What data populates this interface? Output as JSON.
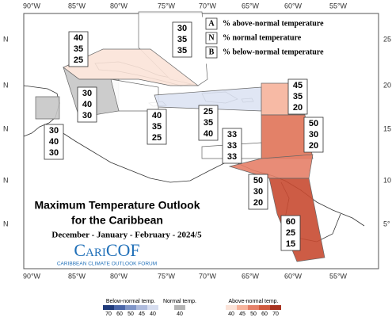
{
  "map": {
    "lon_labels": [
      "90°W",
      "85°W",
      "80°W",
      "75°W",
      "70°W",
      "65°W",
      "60°W",
      "55°W"
    ],
    "lat_labels_left": [
      "N",
      "N",
      "N",
      "N",
      "N"
    ],
    "lat_labels_right": [
      "25",
      "20",
      "15",
      "10",
      "5°"
    ],
    "legend": [
      {
        "letter": "A",
        "text": "% above-normal temperature"
      },
      {
        "letter": "N",
        "text": "% normal temperature"
      },
      {
        "letter": "B",
        "text": "% below-normal temperature"
      }
    ],
    "regions": [
      {
        "color": "#ffffff",
        "values": [
          30,
          35,
          35
        ]
      },
      {
        "color": "#fbe3d8",
        "values": [
          40,
          35,
          25
        ]
      },
      {
        "color": "#c6c6c6",
        "values": [
          30,
          40,
          30
        ]
      },
      {
        "color": "#c6c6c6",
        "values": [
          30,
          40,
          30
        ]
      },
      {
        "color": "#ffffff",
        "values": [
          40,
          35,
          25
        ]
      },
      {
        "color": "#dde3f3",
        "values": [
          25,
          35,
          40
        ]
      },
      {
        "color": "#f6b39b",
        "values": [
          45,
          35,
          20
        ]
      },
      {
        "color": "#e07358",
        "values": [
          50,
          30,
          20
        ]
      },
      {
        "color": "#ffffff",
        "values": [
          33,
          33,
          33
        ]
      },
      {
        "color": "#e58068",
        "values": [
          50,
          30,
          20
        ]
      },
      {
        "color": "#c84a31",
        "values": [
          60,
          25,
          15
        ]
      }
    ],
    "title_lines": [
      "Maximum Temperature Outlook",
      "for the Caribbean"
    ],
    "subtitle": "December - January - February - 2024/5",
    "logo": "CariCOF",
    "logo_subtitle": "CARIBBEAN CLIMATE OUTLOOK FORUM"
  },
  "colorbar": [
    {
      "title": "Below-normal temp.",
      "colors": [
        "#1f3a7a",
        "#4a66a8",
        "#7f95c8",
        "#aebbdd",
        "#d6ddef"
      ],
      "labels": [
        70,
        60,
        50,
        45,
        40
      ]
    },
    {
      "title": "Normal temp.",
      "colors": [
        "#b5b5b5"
      ],
      "labels": [
        40
      ]
    },
    {
      "title": "Above-normal temp.",
      "colors": [
        "#fbe3d8",
        "#f6b39b",
        "#e58068",
        "#d05a3e",
        "#a83220"
      ],
      "labels": [
        40,
        45,
        50,
        60,
        70
      ]
    }
  ]
}
